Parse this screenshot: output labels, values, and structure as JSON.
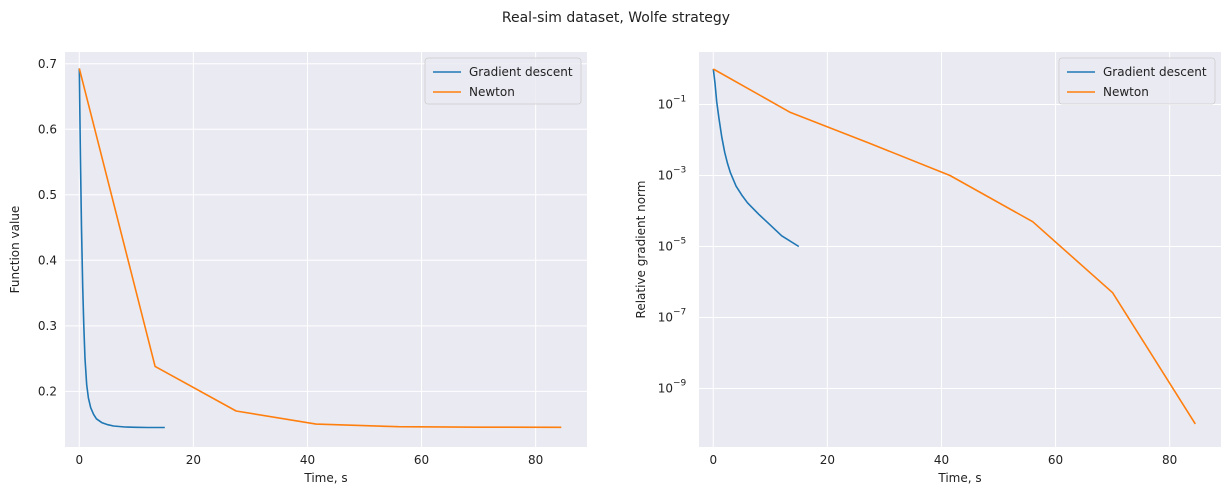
{
  "suptitle": "Real-sim dataset, Wolfe strategy",
  "colors": {
    "gradient_descent": "#1f77b4",
    "newton": "#ff7f0e",
    "background": "#eaeaf2",
    "grid": "#ffffff"
  },
  "chart_data": [
    {
      "type": "line",
      "xlabel": "Time, s",
      "ylabel": "Function value",
      "xlim": [
        -2.5,
        89
      ],
      "ylim": [
        0.115,
        0.718
      ],
      "yscale": "linear",
      "xticks": [
        0,
        20,
        40,
        60,
        80
      ],
      "xtick_labels": [
        "0",
        "20",
        "40",
        "60",
        "80"
      ],
      "yticks": [
        0.2,
        0.3,
        0.4,
        0.5,
        0.6,
        0.7
      ],
      "ytick_labels": [
        "0.2",
        "0.3",
        "0.4",
        "0.5",
        "0.6",
        "0.7"
      ],
      "grid": true,
      "legend": "top-right",
      "series": [
        {
          "name": "Gradient descent",
          "color": "#1f77b4",
          "x": [
            0,
            0.2,
            0.4,
            0.6,
            0.8,
            1.0,
            1.3,
            1.6,
            2.0,
            2.5,
            3.0,
            4.0,
            5.0,
            6.0,
            8.0,
            10.0,
            12.0,
            15.0
          ],
          "y": [
            0.693,
            0.56,
            0.45,
            0.36,
            0.3,
            0.25,
            0.21,
            0.19,
            0.175,
            0.165,
            0.158,
            0.152,
            0.149,
            0.147,
            0.1455,
            0.145,
            0.1448,
            0.1447
          ]
        },
        {
          "name": "Newton",
          "color": "#ff7f0e",
          "x": [
            0,
            13.3,
            27.5,
            41.5,
            56.0,
            70.0,
            84.5
          ],
          "y": [
            0.693,
            0.238,
            0.17,
            0.15,
            0.146,
            0.1452,
            0.145
          ]
        }
      ]
    },
    {
      "type": "line",
      "xlabel": "Time, s",
      "ylabel": "Relative gradient norm",
      "xlim": [
        -2.5,
        89
      ],
      "ylog_lim": [
        -10.65,
        0.48
      ],
      "yscale": "log",
      "xticks": [
        0,
        20,
        40,
        60,
        80
      ],
      "xtick_labels": [
        "0",
        "20",
        "40",
        "60",
        "80"
      ],
      "yticks_exp": [
        -1,
        -3,
        -5,
        -7,
        -9
      ],
      "ytick_base": "10",
      "ytick_exponents": [
        "−1",
        "−3",
        "−5",
        "−7",
        "−9"
      ],
      "grid": true,
      "legend": "top-right",
      "series": [
        {
          "name": "Gradient descent",
          "color": "#1f77b4",
          "x": [
            0,
            0.3,
            0.6,
            1.0,
            1.5,
            2.0,
            2.5,
            3.0,
            4.0,
            5.0,
            6.0,
            8.0,
            10.0,
            12.0,
            15.0
          ],
          "y": [
            1.0,
            0.4,
            0.12,
            0.04,
            0.012,
            0.0045,
            0.0022,
            0.0012,
            0.0005,
            0.00028,
            0.00017,
            8e-05,
            4e-05,
            2e-05,
            1e-05
          ]
        },
        {
          "name": "Newton",
          "color": "#ff7f0e",
          "x": [
            0,
            13.5,
            27.5,
            41.5,
            56.0,
            70.0,
            84.5
          ],
          "y": [
            1.0,
            0.06,
            0.008,
            0.001,
            5e-05,
            5e-07,
            1e-10
          ]
        }
      ]
    }
  ]
}
